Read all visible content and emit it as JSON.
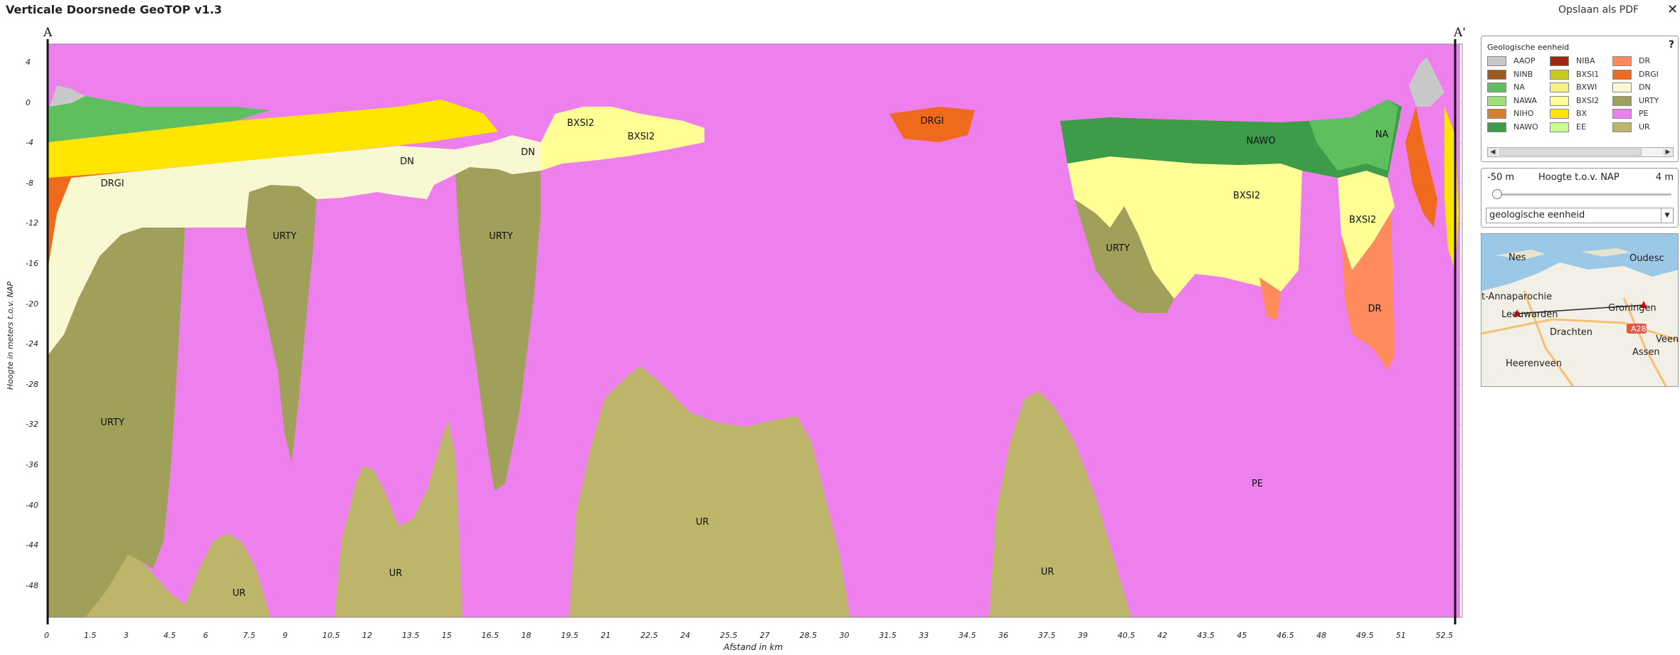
{
  "app": {
    "title": "Verticale Doorsnede GeoTOP v1.3",
    "save_pdf": "Opslaan als PDF",
    "close": "✕"
  },
  "section": {
    "start": "A",
    "end": "A'"
  },
  "axes": {
    "ylabel": "Hoogte in meters t.o.v. NAP",
    "xlabel": "Afstand in km",
    "y_ticks": [
      "4",
      "0",
      "-4",
      "-8",
      "-12",
      "-16",
      "-20",
      "-24",
      "-28",
      "-32",
      "-36",
      "-40",
      "-44",
      "-48"
    ],
    "x_ticks": [
      "0",
      "1.5",
      "3",
      "4.5",
      "6",
      "7.5",
      "9",
      "10.5",
      "12",
      "13.5",
      "15",
      "16.5",
      "18",
      "19.5",
      "21",
      "22.5",
      "24",
      "25.5",
      "27",
      "28.5",
      "30",
      "31.5",
      "33",
      "34.5",
      "36",
      "37.5",
      "39",
      "40.5",
      "42",
      "43.5",
      "45",
      "46.5",
      "48",
      "49.5",
      "51",
      "52.5"
    ]
  },
  "units_on_chart": [
    {
      "text": "DRGI"
    },
    {
      "text": "DN"
    },
    {
      "text": "DN"
    },
    {
      "text": "BXSI2"
    },
    {
      "text": "BXSI2"
    },
    {
      "text": "DRGI"
    },
    {
      "text": "NAWO"
    },
    {
      "text": "NA"
    },
    {
      "text": "URTY"
    },
    {
      "text": "URTY"
    },
    {
      "text": "URTY"
    },
    {
      "text": "BXSI2"
    },
    {
      "text": "BXSI2"
    },
    {
      "text": "DR"
    },
    {
      "text": "URTY"
    },
    {
      "text": "UR"
    },
    {
      "text": "UR"
    },
    {
      "text": "UR"
    },
    {
      "text": "UR"
    },
    {
      "text": "PE"
    }
  ],
  "legend": {
    "title": "Geologische eenheid",
    "help": "?",
    "items": [
      {
        "code": "AAOP",
        "color": "#c8c8c8"
      },
      {
        "code": "NINB",
        "color": "#a05a1e"
      },
      {
        "code": "NA",
        "color": "#5fbf5f"
      },
      {
        "code": "NAWA",
        "color": "#9be07a"
      },
      {
        "code": "NIHO",
        "color": "#d4802e"
      },
      {
        "code": "NAWO",
        "color": "#3c9c48"
      },
      {
        "code": "NIBA",
        "color": "#9c2a10"
      },
      {
        "code": "BXSI1",
        "color": "#c8c81e"
      },
      {
        "code": "BXWI",
        "color": "#f5f082"
      },
      {
        "code": "BXSI2",
        "color": "#ffff96"
      },
      {
        "code": "BX",
        "color": "#ffe600"
      },
      {
        "code": "EE",
        "color": "#c8ff8c"
      },
      {
        "code": "DR",
        "color": "#ff8a5c"
      },
      {
        "code": "DRGI",
        "color": "#f06a1e"
      },
      {
        "code": "DN",
        "color": "#f8f8d2"
      },
      {
        "code": "URTY",
        "color": "#a0a05a"
      },
      {
        "code": "PE",
        "color": "#ee80ee"
      },
      {
        "code": "UR",
        "color": "#bdb66a"
      }
    ]
  },
  "height_control": {
    "min": "-50 m",
    "title": "Hoogte t.o.v. NAP",
    "max": "4 m",
    "value_fraction": 0.0
  },
  "display_select": {
    "value": "geologische eenheid"
  },
  "map": {
    "labels": [
      "Nes",
      "Oudesc",
      "t-Annaparochie",
      "Leeuwarden",
      "Groningen",
      "Drachten",
      "A28",
      "Veen",
      "Assen",
      "Heerenveen"
    ]
  },
  "colors": {
    "PE": "#ee80ee",
    "UR": "#bdb66a",
    "URTY": "#a0a05a",
    "DN": "#f8f8d2",
    "BXSI2": "#ffff96",
    "DRGI": "#f06a1e",
    "DR": "#ff8a5c",
    "NA": "#5fbf5f",
    "NAWO": "#3c9c48",
    "AAOP": "#c8c8c8",
    "BX": "#ffe600"
  }
}
